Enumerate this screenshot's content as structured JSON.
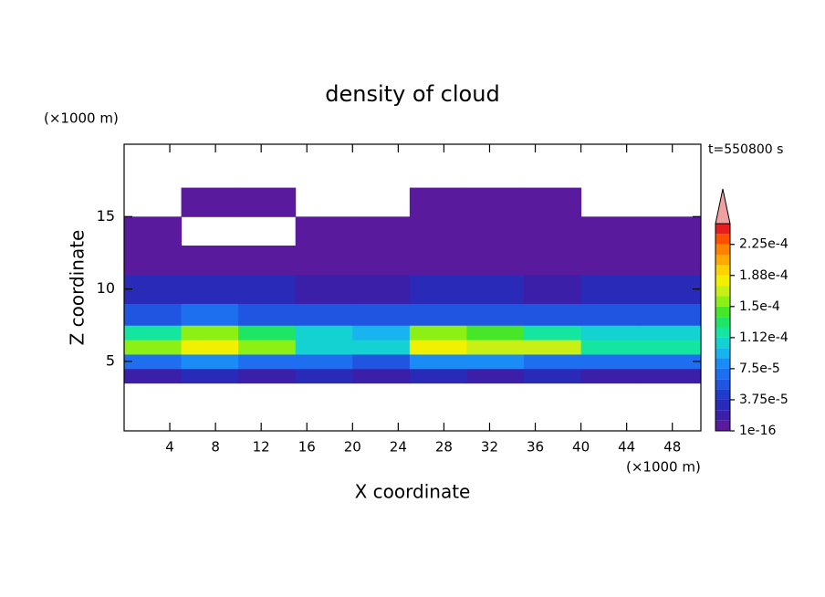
{
  "chart_data": {
    "type": "contour",
    "title": "density of cloud",
    "x_label": "X coordinate",
    "y_label": "Z coordinate",
    "x_unit": "(×1000 m)",
    "y_unit": "(×1000 m)",
    "annotation": "t=550800 s",
    "xlim": [
      0,
      50.5
    ],
    "ylim": [
      0.2,
      20
    ],
    "xticks": [
      4,
      8,
      12,
      16,
      20,
      24,
      28,
      32,
      36,
      40,
      44,
      48
    ],
    "yticks": [
      5,
      10,
      15
    ],
    "x_edges": [
      0,
      5,
      10,
      15,
      20,
      25,
      30,
      35,
      40,
      45,
      50.5
    ],
    "z_edges": [
      3.5,
      4.5,
      5.5,
      6.5,
      7.5,
      9,
      11,
      13,
      15,
      17
    ],
    "z": [
      [
        2e-05,
        2.5e-05,
        2e-05,
        2.5e-05,
        2e-05,
        2.5e-05,
        2e-05,
        2.5e-05,
        2e-05,
        2e-05
      ],
      [
        7e-05,
        8e-05,
        7e-05,
        7e-05,
        6e-05,
        8e-05,
        8e-05,
        7e-05,
        7e-05,
        7e-05
      ],
      [
        0.00016,
        0.00018,
        0.00016,
        0.00011,
        0.0001,
        0.00018,
        0.00017,
        0.00017,
        0.00012,
        0.00012
      ],
      [
        0.00012,
        0.00016,
        0.00013,
        0.0001,
        9e-05,
        0.00016,
        0.00014,
        0.00012,
        0.0001,
        0.0001
      ],
      [
        6e-05,
        7e-05,
        6e-05,
        5e-05,
        5e-05,
        6e-05,
        6e-05,
        5e-05,
        5e-05,
        6e-05
      ],
      [
        2.5e-05,
        3e-05,
        2.5e-05,
        2e-05,
        2e-05,
        2.5e-05,
        2.5e-05,
        2e-05,
        2.5e-05,
        2.5e-05
      ],
      [
        8e-06,
        5e-06,
        6e-06,
        8e-06,
        8e-06,
        8e-06,
        8e-06,
        8e-06,
        8e-06,
        8e-06
      ],
      [
        2e-06,
        null,
        null,
        2e-06,
        2e-06,
        2e-06,
        2e-06,
        2e-06,
        2e-06,
        2e-06
      ],
      [
        null,
        1e-06,
        1e-06,
        null,
        null,
        1e-06,
        1e-06,
        1e-06,
        null,
        null
      ]
    ],
    "levels": [
      1e-16,
      1.25e-05,
      2.5e-05,
      3.75e-05,
      5e-05,
      6.25e-05,
      7.5e-05,
      8.75e-05,
      0.0001,
      0.0001125,
      0.000125,
      0.0001375,
      0.00015,
      0.0001625,
      0.000175,
      0.0001875,
      0.0002,
      0.0002125,
      0.000225,
      0.0002375
    ],
    "colors": [
      "#5a1a9e",
      "#3c1fa8",
      "#2a2ab8",
      "#1f3ccc",
      "#1f55e0",
      "#1e6ef0",
      "#1a8cf5",
      "#18b4f0",
      "#14d2d2",
      "#14e6a0",
      "#1ee664",
      "#46e628",
      "#8cf014",
      "#c8f014",
      "#f0f000",
      "#ffd200",
      "#ffaa00",
      "#ff8200",
      "#ff5000",
      "#e61e1e"
    ],
    "over_color": "#f0a0a0",
    "colorbar_lim": [
      1e-16,
      0.00025
    ],
    "colorbar_ticks": [
      {
        "value": 1e-16,
        "label": "1e-16"
      },
      {
        "value": 3.75e-05,
        "label": "3.75e-5"
      },
      {
        "value": 7.5e-05,
        "label": "7.5e-5"
      },
      {
        "value": 0.0001125,
        "label": "1.12e-4"
      },
      {
        "value": 0.00015,
        "label": "1.5e-4"
      },
      {
        "value": 0.0001875,
        "label": "1.88e-4"
      },
      {
        "value": 0.000225,
        "label": "2.25e-4"
      }
    ]
  }
}
